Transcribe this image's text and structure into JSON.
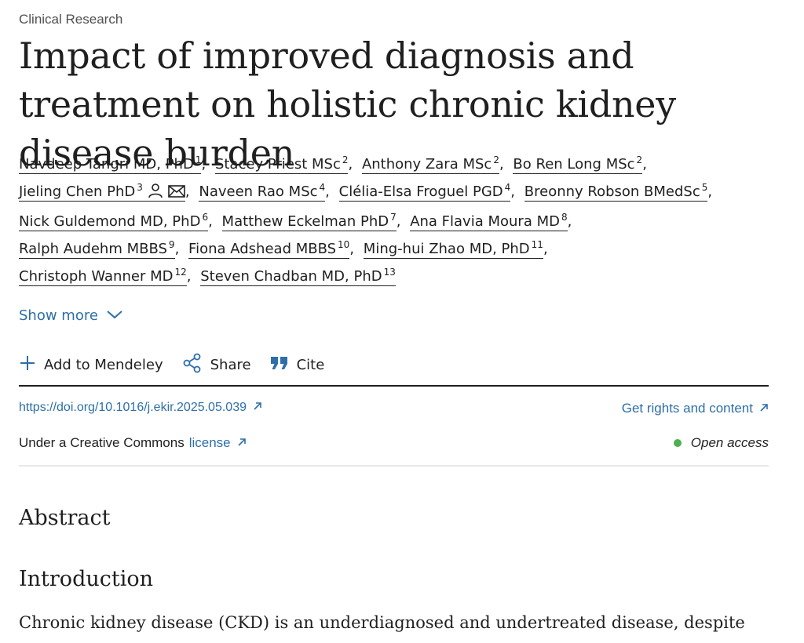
{
  "article": {
    "category": "Clinical Research",
    "title": "Impact of improved diagnosis and treatment on holistic chronic kidney disease burden",
    "authors": [
      {
        "name": "Navdeep Tangri MD, PhD",
        "sup": "1"
      },
      {
        "name": "Stacey Priest MSc",
        "sup": "2"
      },
      {
        "name": "Anthony Zara MSc",
        "sup": "2"
      },
      {
        "name": "Bo Ren Long MSc",
        "sup": "2"
      },
      {
        "name": "Jieling Chen PhD",
        "sup": "3"
      },
      {
        "name": "Naveen Rao MSc",
        "sup": "4"
      },
      {
        "name": "Clélia-Elsa Froguel PGD",
        "sup": "4"
      },
      {
        "name": "Breonny Robson BMedSc",
        "sup": "5"
      },
      {
        "name": "Nick Guldemond MD, PhD",
        "sup": "6"
      },
      {
        "name": "Matthew Eckelman PhD",
        "sup": "7"
      },
      {
        "name": "Ana Flavia Moura MD",
        "sup": "8"
      },
      {
        "name": "Ralph Audehm MBBS",
        "sup": "9"
      },
      {
        "name": "Fiona Adshead MBBS",
        "sup": "10"
      },
      {
        "name": "Ming-hui Zhao MD, PhD",
        "sup": "11"
      },
      {
        "name": "Christoph Wanner MD",
        "sup": "12"
      },
      {
        "name": "Steven Chadban MD, PhD",
        "sup": "13"
      }
    ],
    "show_more_label": "Show more",
    "actions": {
      "mendeley": "Add to Mendeley",
      "share": "Share",
      "cite": "Cite"
    },
    "doi": "https://doi.org/10.1016/j.ekir.2025.05.039",
    "rights_label": "Get rights and content",
    "license_prefix": "Under a Creative Commons",
    "license_link": "license",
    "open_access_label": "Open access",
    "abstract_heading": "Abstract",
    "intro_heading": "Introduction",
    "intro_text": "Chronic kidney disease (CKD) is an underdiagnosed and undertreated disease, despite"
  },
  "colors": {
    "link": "#2e6fa8",
    "text": "#1f1f1f",
    "open_access_dot": "#4caf50"
  },
  "icons": {
    "corresponding_author": "person-icon",
    "email": "envelope-icon",
    "mendeley": "plus-icon",
    "share": "share-icon",
    "cite": "quote-icon",
    "external": "arrow-up-right-icon",
    "show_more": "chevron-down-icon"
  }
}
